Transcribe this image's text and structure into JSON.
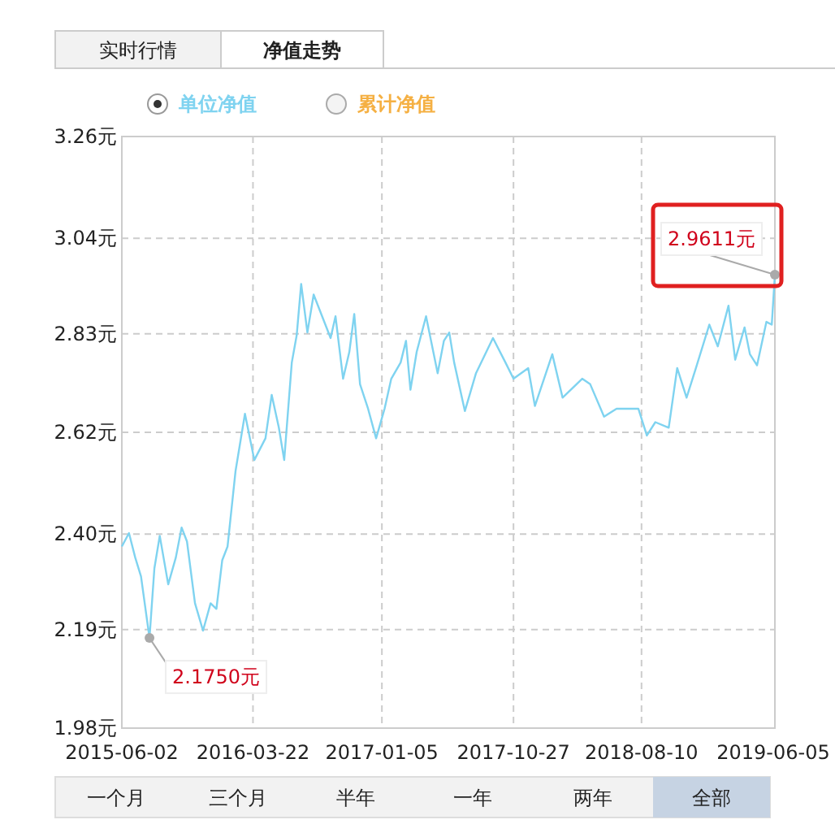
{
  "chart_data": {
    "type": "line",
    "x": [
      "2015-06-02",
      "2015-06-18",
      "2015-07-02",
      "2015-07-15",
      "2015-08-03",
      "2015-08-14",
      "2015-08-26",
      "2015-09-14",
      "2015-10-01",
      "2015-10-14",
      "2015-10-26",
      "2015-11-13",
      "2015-12-01",
      "2015-12-18",
      "2015-12-31",
      "2016-01-13",
      "2016-01-25",
      "2016-02-12",
      "2016-03-04",
      "2016-03-25",
      "2016-04-19",
      "2016-05-03",
      "2016-05-19",
      "2016-05-31",
      "2016-06-17",
      "2016-06-28",
      "2016-07-08",
      "2016-07-22",
      "2016-08-05",
      "2016-08-24",
      "2016-09-12",
      "2016-09-23",
      "2016-10-10",
      "2016-10-24",
      "2016-11-04",
      "2016-11-17",
      "2016-12-05",
      "2016-12-23",
      "2017-01-11",
      "2017-01-26",
      "2017-02-16",
      "2017-02-28",
      "2017-03-10",
      "2017-03-24",
      "2017-04-14",
      "2017-05-10",
      "2017-05-24",
      "2017-06-05",
      "2017-06-16",
      "2017-07-10",
      "2017-08-04",
      "2017-09-11",
      "2017-10-09",
      "2017-10-27",
      "2017-11-29",
      "2017-12-14",
      "2018-01-22",
      "2018-02-14",
      "2018-03-30",
      "2018-04-17",
      "2018-05-18",
      "2018-06-15",
      "2018-08-03",
      "2018-08-22",
      "2018-09-10",
      "2018-10-10",
      "2018-10-29",
      "2018-11-19",
      "2018-12-10",
      "2019-01-09",
      "2019-01-28",
      "2019-02-21",
      "2019-03-08",
      "2019-03-29",
      "2019-04-10",
      "2019-04-26",
      "2019-05-17",
      "2019-05-29",
      "2019-06-05"
    ],
    "series": [
      {
        "name": "单位净值",
        "color": "#7fd3f0",
        "values": [
          2.373,
          2.402,
          2.349,
          2.308,
          2.175,
          2.326,
          2.396,
          2.291,
          2.349,
          2.414,
          2.384,
          2.25,
          2.191,
          2.25,
          2.238,
          2.343,
          2.373,
          2.537,
          2.66,
          2.56,
          2.607,
          2.701,
          2.63,
          2.56,
          2.771,
          2.83,
          2.941,
          2.836,
          2.918,
          2.871,
          2.824,
          2.871,
          2.736,
          2.794,
          2.876,
          2.724,
          2.671,
          2.607,
          2.671,
          2.736,
          2.771,
          2.818,
          2.712,
          2.794,
          2.871,
          2.748,
          2.818,
          2.836,
          2.771,
          2.666,
          2.748,
          2.824,
          2.771,
          2.736,
          2.759,
          2.677,
          2.789,
          2.695,
          2.736,
          2.724,
          2.654,
          2.671,
          2.671,
          2.613,
          2.642,
          2.63,
          2.759,
          2.695,
          2.759,
          2.853,
          2.806,
          2.894,
          2.777,
          2.847,
          2.789,
          2.765,
          2.859,
          2.853,
          2.9611
        ]
      }
    ],
    "xlim": [
      "2015-06-02",
      "2019-06-05"
    ],
    "xticks": [
      "2015-06-02",
      "2016-03-22",
      "2017-01-05",
      "2017-10-27",
      "2018-08-10",
      "2019-06-05"
    ],
    "ylim": [
      1.98,
      3.26
    ],
    "yticks": [
      {
        "value": 1.98,
        "label": "1.98元"
      },
      {
        "value": 2.1933,
        "label": "2.19元"
      },
      {
        "value": 2.4,
        "label": "2.40元"
      },
      {
        "value": 2.62,
        "label": "2.62元"
      },
      {
        "value": 2.8333,
        "label": "2.83元"
      },
      {
        "value": 3.04,
        "label": "3.04元"
      },
      {
        "value": 3.26,
        "label": "3.26元"
      }
    ],
    "grid": true,
    "legend": "top",
    "annotations": [
      "实时行情",
      "净值走势",
      "累计净值",
      "一个月",
      "三个月",
      "半年",
      "一年",
      "两年",
      "全部",
      {
        "text": "2.1750元",
        "x": "2015-08-03",
        "y": 2.175
      },
      {
        "text": "2.9611元",
        "x": "2019-06-05",
        "y": 2.9611
      }
    ]
  }
}
